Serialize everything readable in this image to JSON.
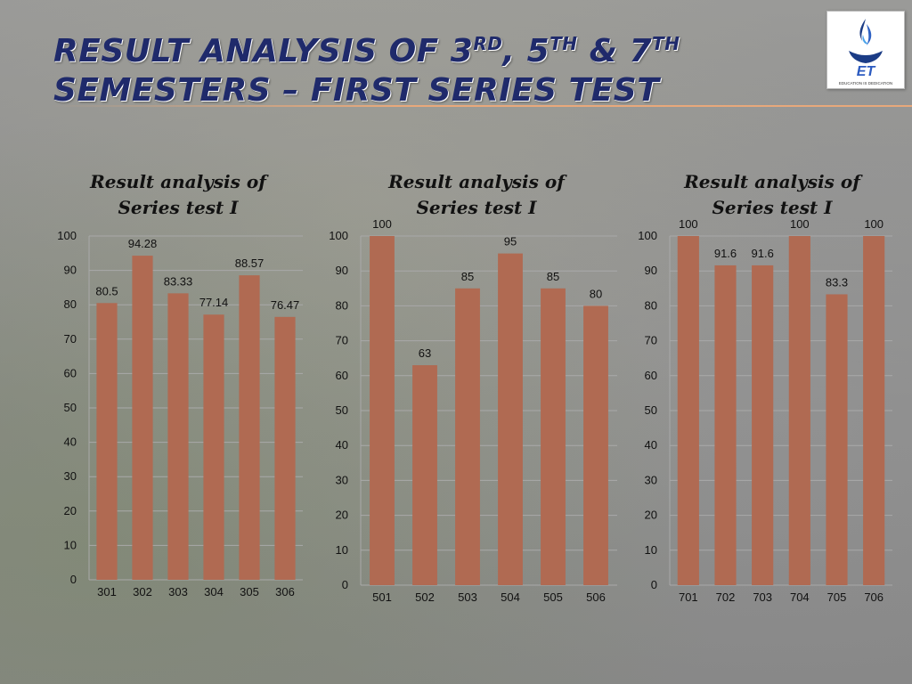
{
  "slide": {
    "title_line1_prefix": "RESULT ANALYSIS OF 3",
    "title_sup1": "RD",
    "title_mid": ", 5",
    "title_sup2": "TH",
    "title_mid2": " & 7",
    "title_sup3": "TH",
    "title_line2": "SEMESTERS – FIRST SERIES TEST",
    "logo_text": "ET",
    "logo_tagline": "EDUCATION IS DEDICATION"
  },
  "colors": {
    "bar": "#b06a52",
    "title": "#1f2a6b",
    "grid": "#a9a9a9"
  },
  "chart_data": [
    {
      "type": "bar",
      "title": "Result analysis of Series test I",
      "categories": [
        "301",
        "302",
        "303",
        "304",
        "305",
        "306"
      ],
      "values": [
        80.5,
        94.28,
        83.33,
        77.14,
        88.57,
        76.47
      ],
      "labels": [
        "80.5",
        "94.28",
        "83.33",
        "77.14",
        "88.57",
        "76.47"
      ],
      "ylim": [
        0,
        100
      ],
      "yticks": [
        0,
        10,
        20,
        30,
        40,
        50,
        60,
        70,
        80,
        90,
        100
      ],
      "grid": true
    },
    {
      "type": "bar",
      "title": "Result analysis of Series test I",
      "categories": [
        "501",
        "502",
        "503",
        "504",
        "505",
        "506"
      ],
      "values": [
        100,
        63,
        85,
        95,
        85,
        80
      ],
      "labels": [
        "100",
        "63",
        "85",
        "95",
        "85",
        "80"
      ],
      "ylim": [
        0,
        100
      ],
      "yticks": [
        0,
        10,
        20,
        30,
        40,
        50,
        60,
        70,
        80,
        90,
        100
      ],
      "grid": true
    },
    {
      "type": "bar",
      "title": "Result analysis of Series test I",
      "categories": [
        "701",
        "702",
        "703",
        "704",
        "705",
        "706"
      ],
      "values": [
        100,
        91.6,
        91.6,
        100,
        83.3,
        100
      ],
      "labels": [
        "100",
        "91.6",
        "91.6",
        "100",
        "83.3",
        "100"
      ],
      "ylim": [
        0,
        100
      ],
      "yticks": [
        0,
        10,
        20,
        30,
        40,
        50,
        60,
        70,
        80,
        90,
        100
      ],
      "grid": true
    }
  ]
}
